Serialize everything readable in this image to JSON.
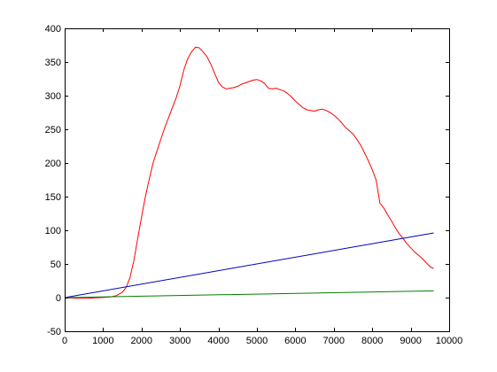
{
  "chart_data": {
    "type": "line",
    "title": "",
    "xlabel": "",
    "ylabel": "",
    "xlim": [
      0,
      10000
    ],
    "ylim": [
      -50,
      400
    ],
    "grid": false,
    "x_ticks": [
      "0",
      "1000",
      "2000",
      "3000",
      "4000",
      "5000",
      "6000",
      "7000",
      "8000",
      "9000",
      "10000"
    ],
    "y_ticks": [
      "-50",
      "0",
      "50",
      "100",
      "150",
      "200",
      "250",
      "300",
      "350",
      "400"
    ],
    "series": [
      {
        "color": "#ff0000",
        "x": [
          0,
          300,
          600,
          900,
          1200,
          1350,
          1500,
          1600,
          1700,
          1800,
          1900,
          2000,
          2100,
          2200,
          2300,
          2400,
          2500,
          2600,
          2700,
          2800,
          2900,
          3000,
          3100,
          3200,
          3300,
          3400,
          3500,
          3550,
          3600,
          3700,
          3800,
          3900,
          4000,
          4100,
          4200,
          4300,
          4400,
          4500,
          4600,
          4700,
          4800,
          4900,
          5000,
          5100,
          5200,
          5300,
          5400,
          5500,
          5600,
          5700,
          5800,
          5900,
          6000,
          6100,
          6200,
          6300,
          6400,
          6500,
          6600,
          6700,
          6800,
          6900,
          7000,
          7100,
          7200,
          7300,
          7400,
          7500,
          7600,
          7700,
          7800,
          7900,
          8000,
          8100,
          8200,
          8250,
          8300,
          8400,
          8500,
          8600,
          8700,
          8800,
          8900,
          9000,
          9100,
          9200,
          9300,
          9400,
          9500,
          9600
        ],
        "y": [
          0,
          -1,
          -1,
          0,
          1,
          3,
          8,
          15,
          30,
          55,
          88,
          120,
          150,
          176,
          200,
          218,
          235,
          252,
          267,
          282,
          297,
          315,
          338,
          355,
          365,
          372,
          371,
          368,
          365,
          358,
          347,
          333,
          320,
          313,
          310,
          311,
          312,
          314,
          317,
          319,
          321,
          323,
          324,
          322,
          318,
          311,
          310,
          311,
          309,
          307,
          303,
          298,
          292,
          287,
          282,
          279,
          278,
          277,
          279,
          280,
          278,
          275,
          271,
          266,
          260,
          253,
          248,
          243,
          235,
          226,
          215,
          203,
          190,
          175,
          140,
          137,
          133,
          123,
          114,
          104,
          95,
          88,
          80,
          74,
          68,
          63,
          58,
          52,
          46,
          43
        ]
      },
      {
        "color": "#0000bf",
        "x": [
          0,
          9600
        ],
        "y": [
          0,
          96
        ]
      },
      {
        "color": "#007f00",
        "x": [
          0,
          9600
        ],
        "y": [
          0,
          10
        ]
      }
    ]
  }
}
